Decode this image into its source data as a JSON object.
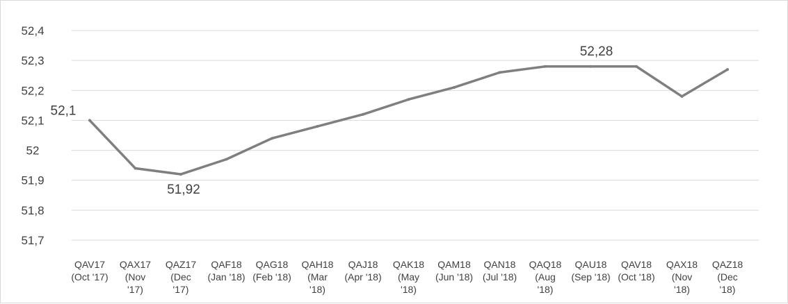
{
  "chart_data": {
    "type": "line",
    "title": "",
    "xlabel": "",
    "ylabel": "",
    "ylim": [
      51.7,
      52.4
    ],
    "y_ticks": [
      "51,7",
      "51,8",
      "51,9",
      "52",
      "52,1",
      "52,2",
      "52,3",
      "52,4"
    ],
    "y_tick_values": [
      51.7,
      51.8,
      51.9,
      52.0,
      52.1,
      52.2,
      52.3,
      52.4
    ],
    "grid": true,
    "legend": "none",
    "line_color": "#7f7f7f",
    "categories": [
      [
        "QAV17",
        "(Oct '17)"
      ],
      [
        "QAX17",
        "(Nov",
        "'17)"
      ],
      [
        "QAZ17",
        "(Dec",
        "'17)"
      ],
      [
        "QAF18",
        "(Jan '18)"
      ],
      [
        "QAG18",
        "(Feb '18)"
      ],
      [
        "QAH18",
        "(Mar",
        "'18)"
      ],
      [
        "QAJ18",
        "(Apr '18)"
      ],
      [
        "QAK18",
        "(May",
        "'18)"
      ],
      [
        "QAM18",
        "(Jun '18)"
      ],
      [
        "QAN18",
        "(Jul '18)"
      ],
      [
        "QAQ18",
        "(Aug",
        "'18)"
      ],
      [
        "QAU18",
        "(Sep '18)"
      ],
      [
        "QAV18",
        "(Oct '18)"
      ],
      [
        "QAX18",
        "(Nov",
        "'18)"
      ],
      [
        "QAZ18",
        "(Dec",
        "'18)"
      ]
    ],
    "values": [
      52.1,
      51.94,
      51.92,
      51.97,
      52.04,
      52.08,
      52.12,
      52.17,
      52.21,
      52.26,
      52.28,
      52.28,
      52.28,
      52.18,
      52.27
    ],
    "data_labels": [
      {
        "index": 0,
        "text": "52,1"
      },
      {
        "index": 2,
        "text": "51,92"
      },
      {
        "index": 11,
        "text": "52,28"
      }
    ]
  }
}
